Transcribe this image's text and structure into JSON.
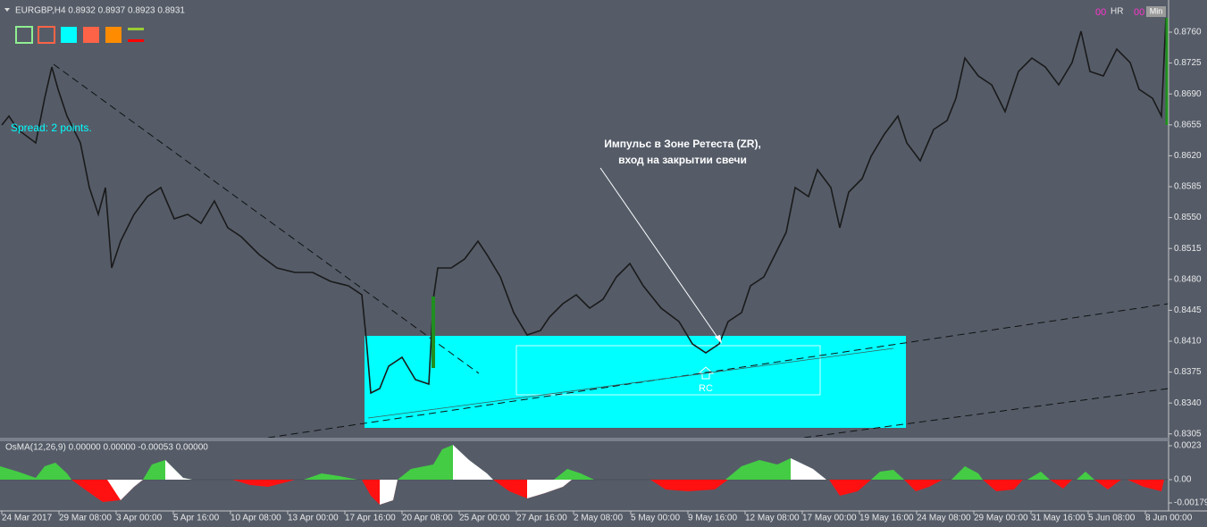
{
  "header": {
    "symbol_info": "EURGBP,H4  0.8932 0.8937 0.8923 0.8931",
    "hr_counter": "00",
    "hr": "HR",
    "min_counter": "00",
    "min": "Min"
  },
  "spread": "Spread: 2 points.",
  "annotation": {
    "line1": "Импульс в Зоне Ретеста (ZR),",
    "line2": "вход на закрытии свечи"
  },
  "zone_label": "RC",
  "price_axis": [
    "0.8760",
    "0.8725",
    "0.8690",
    "0.8655",
    "0.8620",
    "0.8585",
    "0.8550",
    "0.8515",
    "0.8480",
    "0.8445",
    "0.8410",
    "0.8375",
    "0.8340",
    "0.8305"
  ],
  "indicator": {
    "title": "OsMA(12,26,9) 0.00000 0.00000 -0.00053 0.00000",
    "axis": [
      "0.0023",
      "0.00",
      "-0.00179"
    ]
  },
  "time_axis": [
    "24 Mar 2017",
    "29 Mar 08:00",
    "3 Apr 00:00",
    "5 Apr 16:00",
    "10 Apr 08:00",
    "13 Apr 00:00",
    "17 Apr 16:00",
    "20 Apr 08:00",
    "25 Apr 00:00",
    "27 Apr 16:00",
    "2 May 08:00",
    "5 May 00:00",
    "9 May 16:00",
    "12 May 08:00",
    "17 May 00:00",
    "19 May 16:00",
    "24 May 08:00",
    "29 May 00:00",
    "31 May 16:00",
    "5 Jun 08:00",
    "8 Jun 00:00"
  ]
}
